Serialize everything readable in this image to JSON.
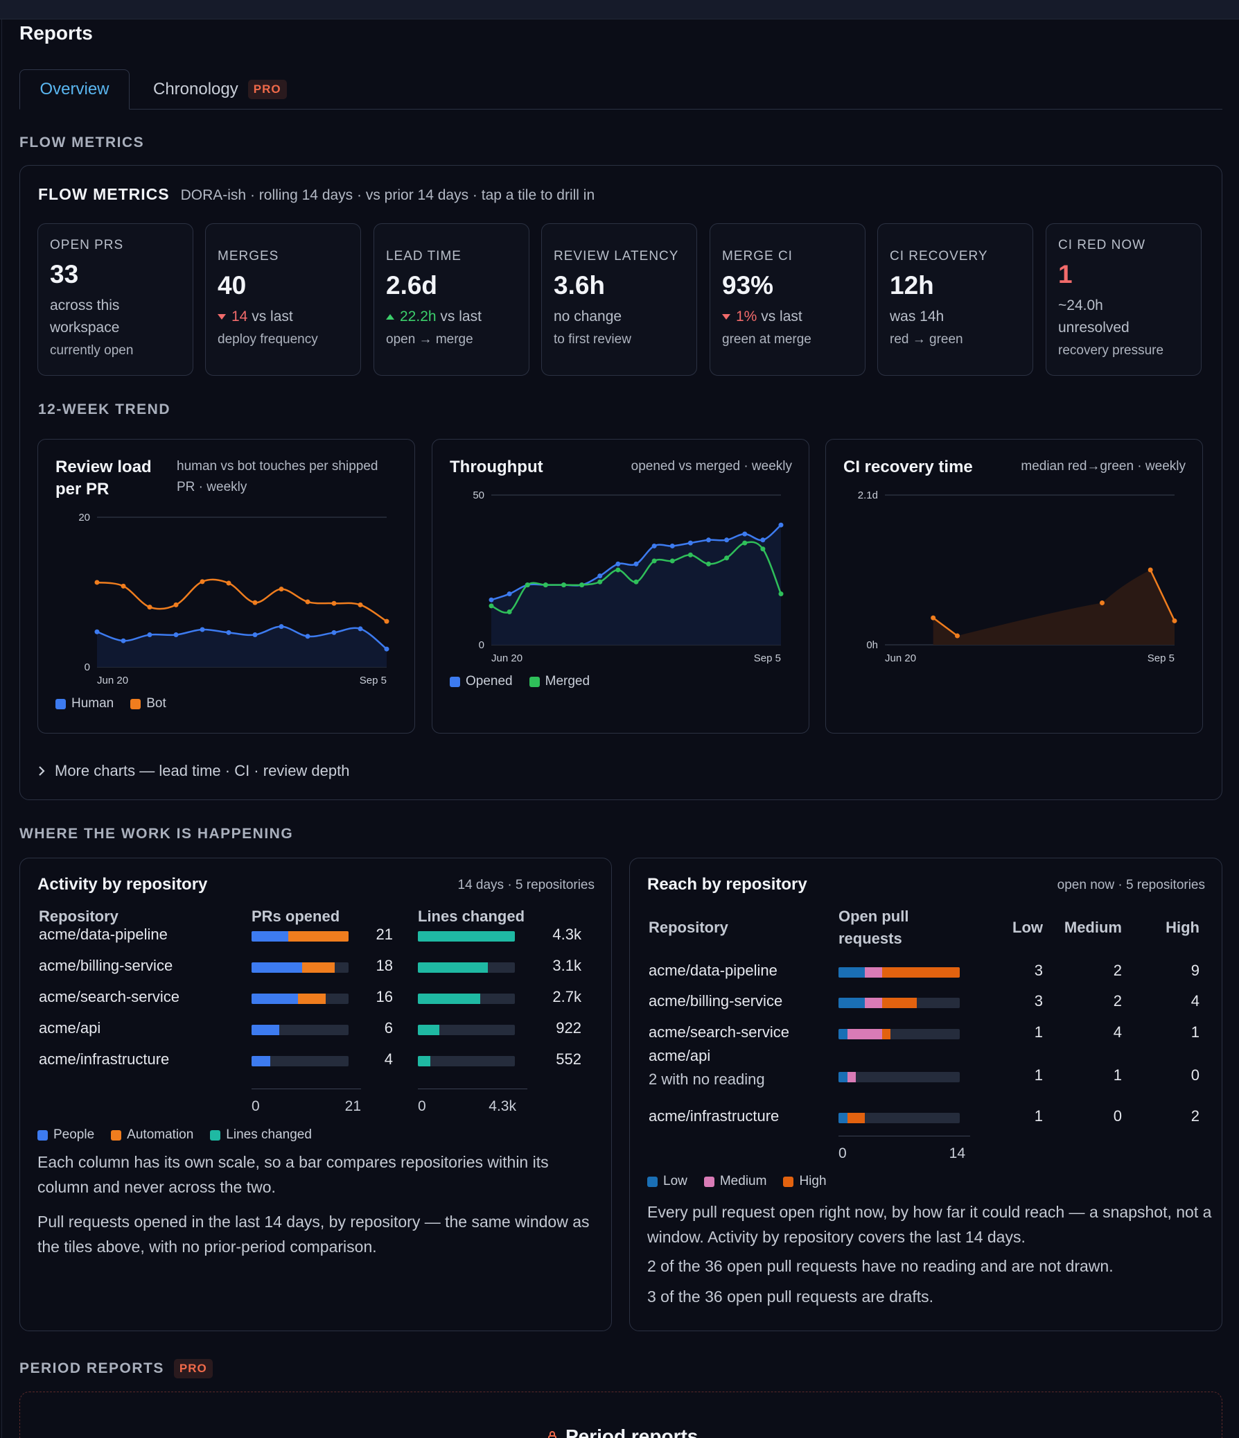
{
  "header": {
    "title": "Reports"
  },
  "tabs": [
    {
      "label": "Overview"
    },
    {
      "label": "Chronology",
      "badge": "PRO"
    }
  ],
  "flow_section_label": "FLOW METRICS",
  "flow": {
    "title": "FLOW METRICS",
    "subtitle": "DORA-ish · rolling 14 days · vs prior 14 days · tap a tile to drill in",
    "tiles": [
      {
        "label": "OPEN PRS",
        "value": "33",
        "line1": "across this",
        "line2": "workspace",
        "foot": "currently open"
      },
      {
        "label": "MERGES",
        "value": "40",
        "delta": "14",
        "delta_suffix": " vs last",
        "foot": "deploy frequency",
        "dir": "down"
      },
      {
        "label": "LEAD TIME",
        "value": "2.6d",
        "delta": "22.2h",
        "delta_suffix": " vs last",
        "foot": "open → merge",
        "dir": "up"
      },
      {
        "label": "REVIEW LATENCY",
        "value": "3.6h",
        "line1": "no change",
        "foot": "to first review"
      },
      {
        "label": "MERGE CI",
        "value": "93%",
        "delta": "1%",
        "delta_suffix": " vs last",
        "foot": "green at merge",
        "dir": "down"
      },
      {
        "label": "CI RECOVERY",
        "value": "12h",
        "line1": "was 14h",
        "foot": "red → green"
      },
      {
        "label": "CI RED NOW",
        "value": "1",
        "line1": "~24.0h",
        "line2": "unresolved",
        "foot": "recovery pressure"
      }
    ],
    "trend_label": "12-WEEK TREND",
    "more_label": "More charts — lead time · CI · review depth"
  },
  "chart_data": [
    {
      "type": "area",
      "title": "Review load per PR",
      "subtitle": "human vs bot touches per shipped PR · weekly",
      "ylim": [
        0,
        20
      ],
      "y_ticks": [
        "20",
        "0"
      ],
      "x_ticks": [
        "Jun 20",
        "Sep 5"
      ],
      "series": [
        {
          "name": "Human",
          "color": "#3d7bf0",
          "values": [
            4.7,
            3.5,
            4.3,
            4.3,
            5.0,
            4.6,
            4.3,
            5.4,
            4.1,
            4.6,
            5.1,
            2.4
          ]
        },
        {
          "name": "Bot",
          "color": "#f07d1e",
          "values": [
            11.3,
            10.8,
            8.0,
            8.3,
            11.4,
            11.2,
            8.6,
            10.4,
            8.7,
            8.5,
            8.3,
            6.1
          ]
        }
      ]
    },
    {
      "type": "area",
      "title": "Throughput",
      "subtitle": "opened vs merged · weekly",
      "ylim": [
        0,
        50
      ],
      "y_ticks": [
        "50",
        "0"
      ],
      "x_ticks": [
        "Jun 20",
        "Sep 5"
      ],
      "series": [
        {
          "name": "Opened",
          "color": "#3d7bf0",
          "values": [
            15,
            17,
            20,
            20,
            20,
            20,
            23,
            27,
            27,
            33,
            33,
            34,
            35,
            35,
            37,
            35,
            40
          ]
        },
        {
          "name": "Merged",
          "color": "#2fbf5a",
          "values": [
            13,
            11,
            20,
            20,
            20,
            20,
            21,
            25,
            21,
            28,
            28,
            30,
            27,
            29,
            34,
            32,
            17
          ]
        }
      ]
    },
    {
      "type": "area",
      "title": "CI recovery time",
      "subtitle": "median red→green · weekly",
      "y_ticks": [
        "2.1d",
        "0h"
      ],
      "x_ticks": [
        "Jun 20",
        "Sep 5"
      ],
      "series": [
        {
          "name": "CI recovery",
          "color": "#f07d1e",
          "values_hours": [
            null,
            null,
            9,
            3,
            null,
            null,
            null,
            null,
            null,
            14,
            null,
            25,
            8
          ]
        }
      ]
    }
  ],
  "work_section_label": "WHERE THE WORK IS HAPPENING",
  "activity": {
    "title": "Activity by repository",
    "meta": "14 days · 5 repositories",
    "headers": {
      "repo": "Repository",
      "prs": "PRs opened",
      "lines": "Lines changed"
    },
    "rows": [
      {
        "repo": "acme/data-pipeline",
        "people": 8,
        "automation": 13,
        "prs": "21",
        "lines_frac": 1.0,
        "lines": "4.3k"
      },
      {
        "repo": "acme/billing-service",
        "people": 11,
        "automation": 7,
        "prs": "18",
        "lines_frac": 0.72,
        "lines": "3.1k"
      },
      {
        "repo": "acme/search-service",
        "people": 10,
        "automation": 6,
        "prs": "16",
        "lines_frac": 0.64,
        "lines": "2.7k"
      },
      {
        "repo": "acme/api",
        "people": 6,
        "automation": 0,
        "prs": "6",
        "lines_frac": 0.22,
        "lines": "922"
      },
      {
        "repo": "acme/infrastructure",
        "people": 4,
        "automation": 0,
        "prs": "4",
        "lines_frac": 0.13,
        "lines": "552"
      }
    ],
    "prs_max": 21,
    "axis": {
      "prs_min": "0",
      "prs_max": "21",
      "lines_min": "0",
      "lines_max": "4.3k"
    },
    "legend": {
      "people": "People",
      "automation": "Automation",
      "lines": "Lines changed"
    },
    "para1": "Each column has its own scale, so a bar compares repositories within its column and never across the two.",
    "para2": "Pull requests opened in the last 14 days, by repository — the same window as the tiles above, with no prior-period comparison."
  },
  "reach": {
    "title": "Reach by repository",
    "meta": "open now · 5 repositories",
    "headers": {
      "repo": "Repository",
      "open": "Open pull requests",
      "low": "Low",
      "medium": "Medium",
      "high": "High"
    },
    "rows": [
      {
        "repo": "acme/data-pipeline",
        "low": "3",
        "medium": "2",
        "high": "9"
      },
      {
        "repo": "acme/billing-service",
        "low": "3",
        "medium": "2",
        "high": "4"
      },
      {
        "repo": "acme/search-service",
        "low": "1",
        "medium": "4",
        "high": "1"
      },
      {
        "repo": "acme/api",
        "note": "2 with no reading",
        "low": "1",
        "medium": "1",
        "high": "0"
      },
      {
        "repo": "acme/infrastructure",
        "low": "1",
        "medium": "0",
        "high": "2"
      }
    ],
    "scale_max": 14,
    "axis": {
      "min": "0",
      "max": "14"
    },
    "legend": {
      "low": "Low",
      "medium": "Medium",
      "high": "High"
    },
    "para1": "Every pull request open right now, by how far it could reach — a snapshot, not a window. Activity by repository covers the last 14 days.",
    "para2": "2 of the 36 open pull requests have no reading and are not drawn.",
    "para3": "3 of the 36 open pull requests are drafts."
  },
  "period": {
    "label": "PERIOD REPORTS",
    "badge": "PRO",
    "box_title": "Period reports"
  },
  "colors": {
    "people": "#3d7bf0",
    "automation": "#f07d1e",
    "lines": "#1fb9a3",
    "low": "#1a6fb5",
    "medium": "#d97bb6",
    "high": "#e2620f"
  }
}
